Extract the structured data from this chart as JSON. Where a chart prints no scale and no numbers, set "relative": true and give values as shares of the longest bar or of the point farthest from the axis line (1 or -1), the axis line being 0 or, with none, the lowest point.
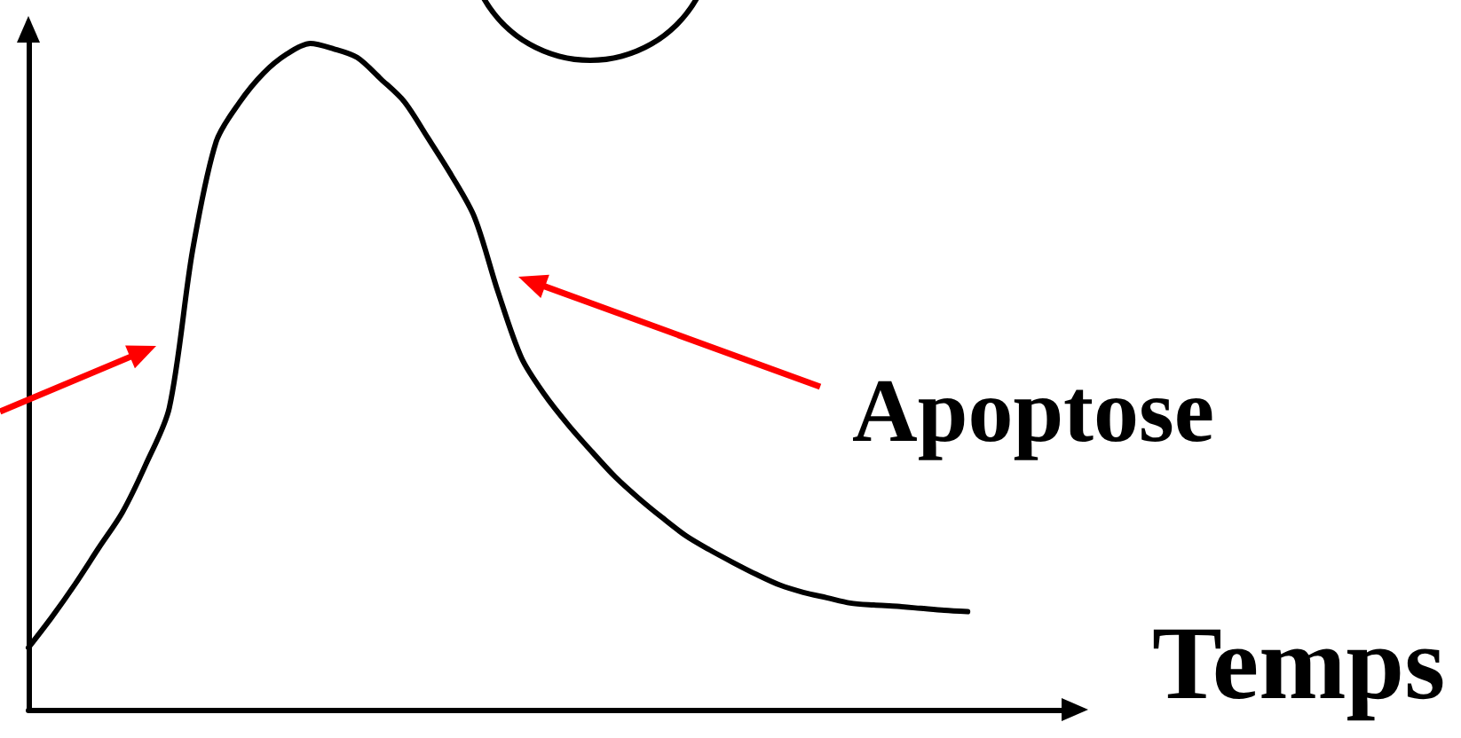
{
  "chart_data": {
    "type": "line",
    "relative": true,
    "xlabel": "Temps",
    "annotations": [
      "Apoptose"
    ],
    "color": "#000000",
    "categories": [
      null,
      null,
      null,
      null,
      null,
      null,
      null,
      null,
      null,
      null,
      null,
      null,
      null,
      null,
      null,
      null,
      null,
      null,
      null,
      null,
      null,
      null,
      null,
      null,
      null,
      null,
      null,
      null,
      null,
      null,
      null,
      null,
      null,
      null,
      null,
      null,
      null,
      null,
      null,
      null,
      null,
      null,
      null,
      null,
      null
    ],
    "values": [
      0.093,
      0.139,
      0.189,
      0.243,
      0.296,
      0.368,
      0.453,
      0.691,
      0.853,
      0.912,
      0.955,
      0.984,
      1,
      0.992,
      0.979,
      0.947,
      0.913,
      0.859,
      0.803,
      0.739,
      0.627,
      0.528,
      0.472,
      0.427,
      0.387,
      0.349,
      0.317,
      0.288,
      0.261,
      0.24,
      0.221,
      0.203,
      0.187,
      0.176,
      0.168,
      0.16,
      0.157,
      0.155,
      0.152,
      0.149,
      0.147,
      null,
      null,
      null,
      null
    ]
  }
}
